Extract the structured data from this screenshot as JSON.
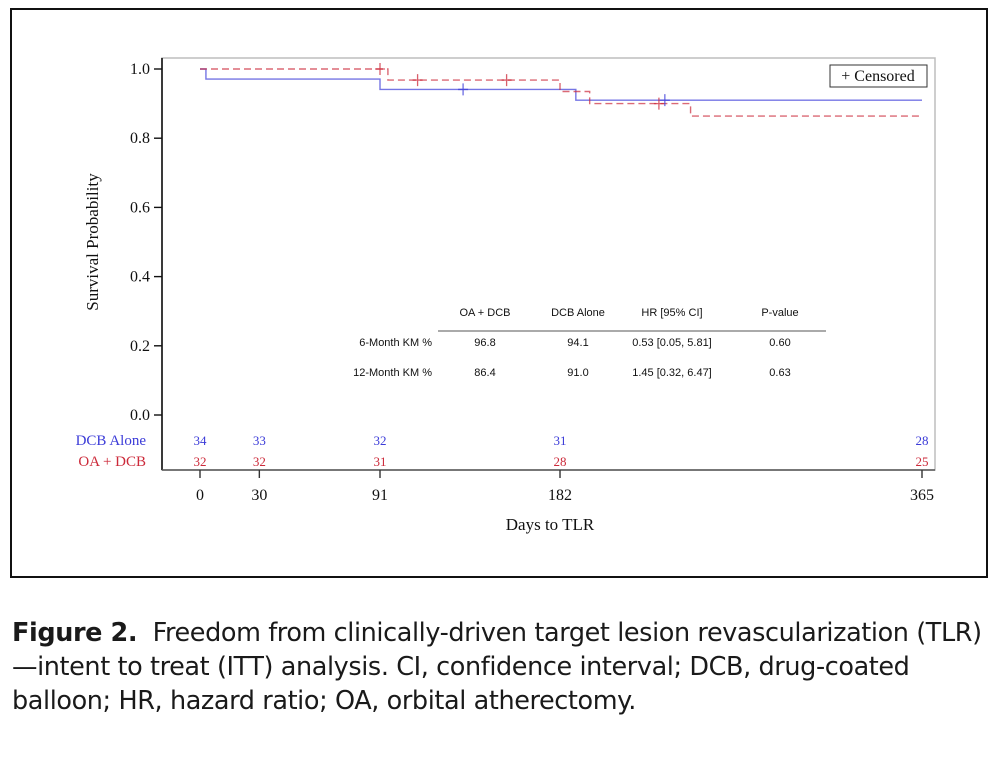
{
  "caption": {
    "label": "Figure 2.",
    "text": "Freedom from clinically-driven target lesion revascularization (TLR)—intent to treat (ITT) analysis. CI, confidence interval; DCB, drug-coated balloon; HR, hazard ratio; OA, orbital atherectomy."
  },
  "colors": {
    "dcb_alone": "#3b3bd8",
    "oa_dcb": "#cc2a3a",
    "axis": "#111111"
  },
  "chart_data": {
    "type": "line",
    "subtype": "kaplan-meier-step",
    "title": "",
    "xlabel": "Days to TLR",
    "ylabel": "Survival Probability",
    "xlim": [
      0,
      365
    ],
    "ylim": [
      0,
      1.0
    ],
    "x_ticks": [
      0,
      30,
      91,
      182,
      365
    ],
    "x_tick_labels": [
      "0",
      "30",
      "91",
      "182",
      "365"
    ],
    "y_ticks": [
      0.0,
      0.2,
      0.4,
      0.6,
      0.8,
      1.0
    ],
    "y_tick_labels": [
      "0.0",
      "0.2",
      "0.4",
      "0.6",
      "0.8",
      "1.0"
    ],
    "grid": false,
    "legend": {
      "position": "top-right",
      "entries": [
        "+ Censored"
      ]
    },
    "series": [
      {
        "name": "DCB Alone",
        "style": "solid",
        "color_key": "dcb_alone",
        "steps": [
          [
            0,
            1.0
          ],
          [
            3,
            0.971
          ],
          [
            91,
            0.941
          ],
          [
            190,
            0.91
          ],
          [
            365,
            0.91
          ]
        ],
        "censored": [
          [
            133,
            0.941
          ],
          [
            235,
            0.91
          ]
        ]
      },
      {
        "name": "OA + DCB",
        "style": "dashed",
        "color_key": "oa_dcb",
        "steps": [
          [
            0,
            1.0
          ],
          [
            95,
            0.968
          ],
          [
            182,
            0.935
          ],
          [
            197,
            0.9
          ],
          [
            248,
            0.864
          ],
          [
            365,
            0.864
          ]
        ],
        "censored": [
          [
            91,
            1.0
          ],
          [
            110,
            0.968
          ],
          [
            155,
            0.968
          ],
          [
            232,
            0.9
          ]
        ]
      }
    ],
    "risk_table": {
      "times": [
        0,
        30,
        91,
        182,
        365
      ],
      "rows": [
        {
          "label": "DCB Alone",
          "color_key": "dcb_alone",
          "values": [
            "34",
            "33",
            "32",
            "31",
            "28"
          ]
        },
        {
          "label": "OA + DCB",
          "color_key": "oa_dcb",
          "values": [
            "32",
            "32",
            "31",
            "28",
            "25"
          ]
        }
      ]
    },
    "stats_table": {
      "headers": [
        "OA   + DCB",
        "DCB Alone",
        "HR [95% CI]",
        "P-value"
      ],
      "rows": [
        {
          "label": "6-Month KM %",
          "values": [
            "96.8",
            "94.1",
            "0.53 [0.05, 5.81]",
            "0.60"
          ]
        },
        {
          "label": "12-Month KM %",
          "values": [
            "86.4",
            "91.0",
            "1.45 [0.32, 6.47]",
            "0.63"
          ]
        }
      ]
    }
  }
}
